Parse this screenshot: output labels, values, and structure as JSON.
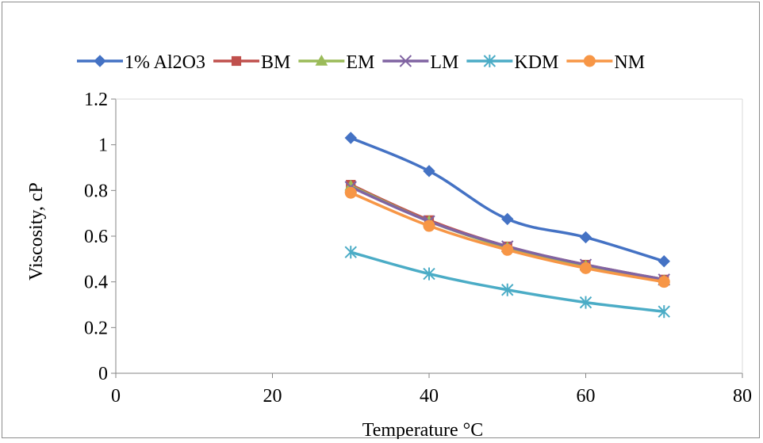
{
  "chart_data": {
    "type": "line",
    "title": "",
    "xlabel": "Temperature °C",
    "ylabel": "Viscosity, cP",
    "xlim": [
      0,
      80
    ],
    "ylim": [
      0,
      1.2
    ],
    "x_ticks": [
      "0",
      "20",
      "40",
      "60",
      "80"
    ],
    "y_ticks": [
      "0",
      "0.2",
      "0.4",
      "0.6",
      "0.8",
      "1",
      "1.2"
    ],
    "grid": false,
    "legend_position": "top",
    "x": [
      30,
      40,
      50,
      60,
      70
    ],
    "series": [
      {
        "name": "1% Al2O3",
        "color": "#4472c4",
        "marker": "diamond",
        "values": [
          1.03,
          0.885,
          0.675,
          0.595,
          0.49
        ]
      },
      {
        "name": "BM",
        "color": "#c0504d",
        "marker": "square",
        "values": [
          0.825,
          0.67,
          0.555,
          0.475,
          0.41
        ]
      },
      {
        "name": "EM",
        "color": "#9bbb59",
        "marker": "triangle",
        "values": [
          0.82,
          0.665,
          0.55,
          0.47,
          0.405
        ]
      },
      {
        "name": "LM",
        "color": "#8064a2",
        "marker": "x",
        "values": [
          0.815,
          0.665,
          0.555,
          0.475,
          0.41
        ]
      },
      {
        "name": "KDM",
        "color": "#4bacc6",
        "marker": "star",
        "values": [
          0.53,
          0.435,
          0.365,
          0.31,
          0.27
        ]
      },
      {
        "name": "NM",
        "color": "#f79646",
        "marker": "circle",
        "values": [
          0.79,
          0.645,
          0.54,
          0.46,
          0.4
        ]
      }
    ]
  }
}
